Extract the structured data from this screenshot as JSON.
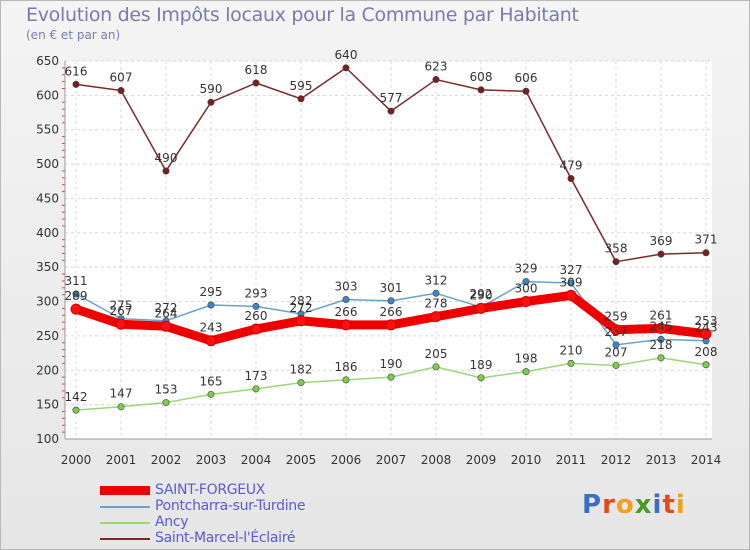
{
  "chart_data": {
    "type": "line",
    "title": "Evolution des Impôts locaux pour la Commune par Habitant",
    "subtitle": "(en € et par an)",
    "x": [
      "2000",
      "2001",
      "2002",
      "2003",
      "2004",
      "2005",
      "2006",
      "2007",
      "2008",
      "2009",
      "2010",
      "2011",
      "2012",
      "2013",
      "2014"
    ],
    "ylim": [
      100,
      650
    ],
    "yticks": [
      "100",
      "150",
      "200",
      "250",
      "300",
      "350",
      "400",
      "450",
      "500",
      "550",
      "600",
      "650"
    ],
    "grid": true,
    "series": [
      {
        "name": "Saint-Marcel-l'Éclairé",
        "color": "#7a2a2a",
        "dot": "#7a1f1f",
        "values": [
          616,
          607,
          490,
          590,
          618,
          595,
          640,
          577,
          623,
          608,
          606,
          479,
          358,
          369,
          371
        ],
        "labels": [
          "616",
          "607",
          "490",
          "590",
          "618",
          "595",
          "640",
          "577",
          "623",
          "608",
          "606",
          "479",
          "358",
          "369",
          "371"
        ]
      },
      {
        "name": "Pontcharra-sur-Turdine",
        "color": "#6aa0cc",
        "dot": "#3b86c8",
        "values": [
          311,
          275,
          272,
          295,
          293,
          282,
          303,
          301,
          312,
          292,
          329,
          327,
          237,
          245,
          243
        ],
        "labels": [
          "311",
          "275",
          "272",
          "295",
          "293",
          "282",
          "303",
          "301",
          "312",
          "292",
          "329",
          "327",
          "237",
          "245",
          "243"
        ]
      },
      {
        "name": "Ancy",
        "color": "#99d77a",
        "dot": "#7ccc4a",
        "values": [
          142,
          147,
          153,
          165,
          173,
          182,
          186,
          190,
          205,
          189,
          198,
          210,
          207,
          218,
          208
        ],
        "labels": [
          "142",
          "147",
          "153",
          "165",
          "173",
          "182",
          "186",
          "190",
          "205",
          "189",
          "198",
          "210",
          "207",
          "218",
          "208"
        ]
      },
      {
        "name": "SAINT-FORGEUX",
        "color": "#ee0000",
        "dot": "#ff1010",
        "values": [
          289,
          267,
          264,
          243,
          260,
          272,
          266,
          266,
          278,
          290,
          300,
          309,
          259,
          261,
          253
        ],
        "labels": [
          "289",
          "267",
          "264",
          "243",
          "260",
          "272",
          "266",
          "266",
          "278",
          "290",
          "300",
          "309",
          "259",
          "261",
          "253"
        ]
      }
    ]
  },
  "legend": {
    "items": [
      {
        "label": "SAINT-FORGEUX",
        "color": "#ee0000"
      },
      {
        "label": "Pontcharra-sur-Turdine",
        "color": "#6aa0cc"
      },
      {
        "label": "Ancy",
        "color": "#99d77a"
      },
      {
        "label": "Saint-Marcel-l'Éclairé",
        "color": "#7a2a2a"
      }
    ]
  },
  "logo": {
    "text": "Proxiti",
    "letters": [
      "P",
      "r",
      "o",
      "x",
      "i",
      "t",
      "i"
    ],
    "colors": [
      "#3b6fc2",
      "#e24a1c",
      "#f0a21a",
      "#4a9a2a",
      "#3b6fc2",
      "#e24a1c",
      "#f0a21a"
    ]
  }
}
